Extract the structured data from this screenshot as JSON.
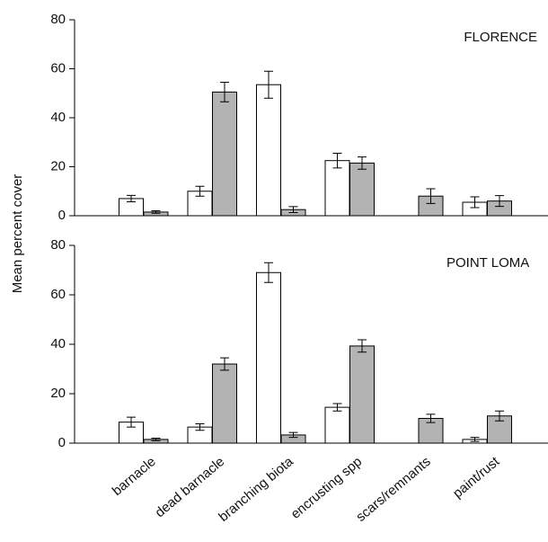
{
  "chart_data": [
    {
      "type": "bar",
      "title": "FLORENCE",
      "ylabel": "Mean percent cover",
      "series": [
        {
          "color": "#ffffff",
          "values": [
            7,
            10,
            53.5,
            22.5,
            null,
            5.5
          ],
          "errors": [
            1.3,
            2,
            5.5,
            3,
            null,
            2.2
          ]
        },
        {
          "color": "#b3b3b3",
          "values": [
            1.5,
            50.5,
            2.5,
            21.5,
            8,
            6
          ],
          "errors": [
            0.5,
            4,
            1.2,
            2.5,
            3,
            2.2
          ]
        }
      ],
      "ylim": [
        0,
        80
      ],
      "yticks": [
        0,
        20,
        40,
        60,
        80
      ]
    },
    {
      "type": "bar",
      "title": "POINT LOMA",
      "categories": [
        "barnacle",
        "dead barnacle",
        "branching biota",
        "encrusting spp",
        "scars/remnants",
        "paint/rust"
      ],
      "series": [
        {
          "color": "#ffffff",
          "values": [
            8.5,
            6.5,
            69,
            14.5,
            null,
            1.5
          ],
          "errors": [
            2,
            1.3,
            4,
            1.5,
            null,
            0.8
          ]
        },
        {
          "color": "#b3b3b3",
          "values": [
            1.5,
            32,
            3.3,
            39.3,
            10,
            11
          ],
          "errors": [
            0.5,
            2.5,
            1,
            2.5,
            1.7,
            2
          ]
        }
      ],
      "ylim": [
        0,
        80
      ],
      "yticks": [
        0,
        20,
        40,
        60,
        80
      ]
    }
  ]
}
